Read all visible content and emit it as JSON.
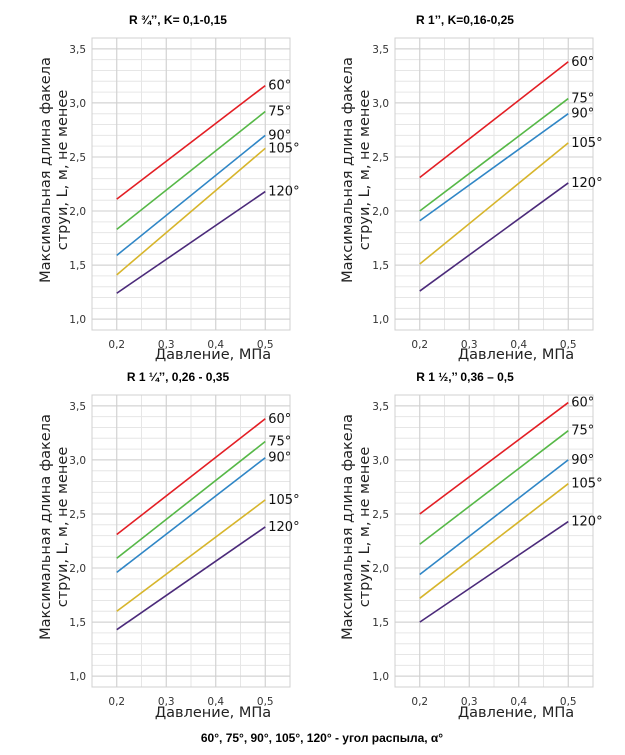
{
  "caption": "60°, 75°, 90°, 105°, 120° - угол распыла, α°",
  "colors": {
    "60°": "#e31e24",
    "75°": "#56b847",
    "90°": "#2f86c6",
    "105°": "#d7b52b",
    "120°": "#4b2a7a"
  },
  "chart_data": [
    {
      "type": "line",
      "title": "R ¾’’, K= 0,1-0,15",
      "xlabel": "Давление, МПа",
      "ylabel": [
        "Максимальная длина факела",
        "струи, L, м, не менее"
      ],
      "xlim": [
        0.15,
        0.55
      ],
      "ylim": [
        0.9,
        3.6
      ],
      "xticks": [
        "0,2",
        "0,3",
        "0,4",
        "0,5"
      ],
      "yticks": [
        "1,0",
        "1,5",
        "2,0",
        "2,5",
        "3,0",
        "3,5"
      ],
      "x": [
        0.2,
        0.5
      ],
      "series": [
        {
          "name": "60°",
          "values": [
            2.11,
            3.16
          ]
        },
        {
          "name": "75°",
          "values": [
            1.83,
            2.92
          ]
        },
        {
          "name": "90°",
          "values": [
            1.59,
            2.7
          ]
        },
        {
          "name": "105°",
          "values": [
            1.41,
            2.58
          ]
        },
        {
          "name": "120°",
          "values": [
            1.24,
            2.18
          ]
        }
      ]
    },
    {
      "type": "line",
      "title": "R 1’’, K=0,16-0,25",
      "xlabel": "Давление, МПа",
      "ylabel": [
        "Максимальная длина факела",
        "струи, L, м, не менее"
      ],
      "xlim": [
        0.15,
        0.55
      ],
      "ylim": [
        0.9,
        3.6
      ],
      "xticks": [
        "0,2",
        "0,3",
        "0,4",
        "0,5"
      ],
      "yticks": [
        "1,0",
        "1,5",
        "2,0",
        "2,5",
        "3,0",
        "3,5"
      ],
      "x": [
        0.2,
        0.5
      ],
      "series": [
        {
          "name": "60°",
          "values": [
            2.31,
            3.38
          ]
        },
        {
          "name": "75°",
          "values": [
            2.0,
            3.04
          ]
        },
        {
          "name": "90°",
          "values": [
            1.91,
            2.9
          ]
        },
        {
          "name": "105°",
          "values": [
            1.51,
            2.63
          ]
        },
        {
          "name": "120°",
          "values": [
            1.26,
            2.26
          ]
        }
      ]
    },
    {
      "type": "line",
      "title": "R 1 ¼’’, 0,26 - 0,35",
      "xlabel": "Давление, МПа",
      "ylabel": [
        "Максимальная длина факела",
        "струи, L, м, не менее"
      ],
      "xlim": [
        0.15,
        0.55
      ],
      "ylim": [
        0.9,
        3.6
      ],
      "xticks": [
        "0,2",
        "0,3",
        "0,4",
        "0,5"
      ],
      "yticks": [
        "1,0",
        "1,5",
        "2,0",
        "2,5",
        "3,0",
        "3,5"
      ],
      "x": [
        0.2,
        0.5
      ],
      "series": [
        {
          "name": "60°",
          "values": [
            2.31,
            3.38
          ]
        },
        {
          "name": "75°",
          "values": [
            2.09,
            3.17
          ]
        },
        {
          "name": "90°",
          "values": [
            1.96,
            3.02
          ]
        },
        {
          "name": "105°",
          "values": [
            1.6,
            2.63
          ]
        },
        {
          "name": "120°",
          "values": [
            1.43,
            2.38
          ]
        }
      ]
    },
    {
      "type": "line",
      "title": "R 1 ½,’’ 0,36 – 0,5",
      "xlabel": "Давление, МПа",
      "ylabel": [
        "Максимальная длина факела",
        "струи, L, м, не менее"
      ],
      "xlim": [
        0.15,
        0.55
      ],
      "ylim": [
        0.9,
        3.6
      ],
      "xticks": [
        "0,2",
        "0,3",
        "0,4",
        "0,5"
      ],
      "yticks": [
        "1,0",
        "1,5",
        "2,0",
        "2,5",
        "3,0",
        "3,5"
      ],
      "x": [
        0.2,
        0.5
      ],
      "series": [
        {
          "name": "60°",
          "values": [
            2.5,
            3.53
          ]
        },
        {
          "name": "75°",
          "values": [
            2.22,
            3.27
          ]
        },
        {
          "name": "90°",
          "values": [
            1.94,
            3.0
          ]
        },
        {
          "name": "105°",
          "values": [
            1.72,
            2.78
          ]
        },
        {
          "name": "120°",
          "values": [
            1.5,
            2.43
          ]
        }
      ]
    }
  ]
}
